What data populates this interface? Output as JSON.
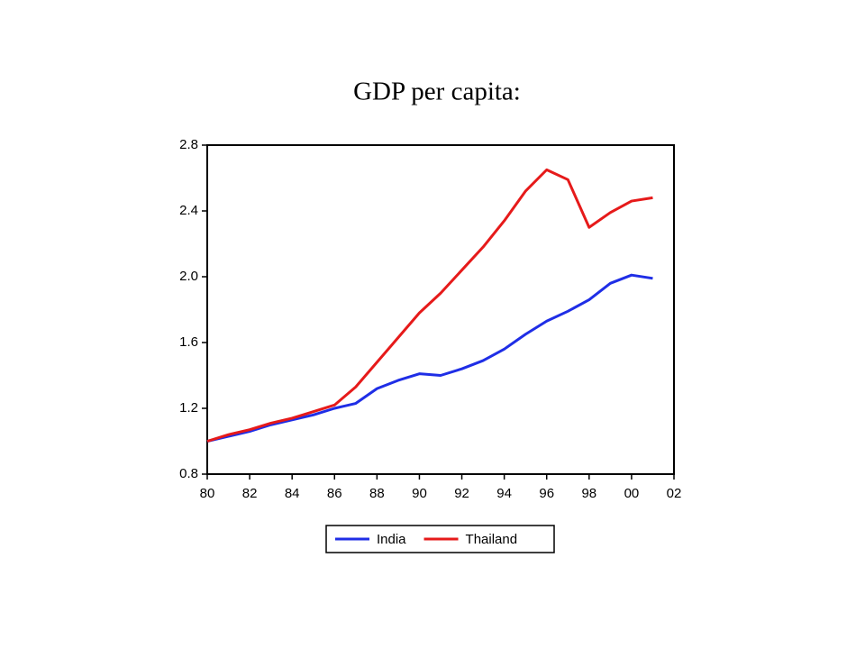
{
  "chart_data": {
    "type": "line",
    "title": "GDP per capita:",
    "x": [
      1980,
      1981,
      1982,
      1983,
      1984,
      1985,
      1986,
      1987,
      1988,
      1989,
      1990,
      1991,
      1992,
      1993,
      1994,
      1995,
      1996,
      1997,
      1998,
      1999,
      2000,
      2001
    ],
    "series": [
      {
        "name": "India",
        "color": "#1f2ee6",
        "values": [
          1.0,
          1.03,
          1.06,
          1.1,
          1.13,
          1.16,
          1.2,
          1.23,
          1.32,
          1.37,
          1.41,
          1.4,
          1.44,
          1.49,
          1.56,
          1.65,
          1.73,
          1.79,
          1.86,
          1.96,
          2.01,
          1.99
        ]
      },
      {
        "name": "Thailand",
        "color": "#e61a1a",
        "values": [
          1.0,
          1.04,
          1.07,
          1.11,
          1.14,
          1.18,
          1.22,
          1.33,
          1.48,
          1.63,
          1.78,
          1.9,
          2.04,
          2.18,
          2.34,
          2.52,
          2.65,
          2.59,
          2.3,
          2.39,
          2.46,
          2.48
        ]
      }
    ],
    "xlim": [
      1980,
      2002
    ],
    "xticks": [
      {
        "value": 1980,
        "label": "80"
      },
      {
        "value": 1982,
        "label": "82"
      },
      {
        "value": 1984,
        "label": "84"
      },
      {
        "value": 1986,
        "label": "86"
      },
      {
        "value": 1988,
        "label": "88"
      },
      {
        "value": 1990,
        "label": "90"
      },
      {
        "value": 1992,
        "label": "92"
      },
      {
        "value": 1994,
        "label": "94"
      },
      {
        "value": 1996,
        "label": "96"
      },
      {
        "value": 1998,
        "label": "98"
      },
      {
        "value": 2000,
        "label": "00"
      },
      {
        "value": 2002,
        "label": "02"
      }
    ],
    "ylim": [
      0.8,
      2.8
    ],
    "yticks": [
      0.8,
      1.2,
      1.6,
      {
        "value": 2,
        "label": "2.0"
      },
      2.4,
      2.8
    ],
    "legend": "bottom"
  }
}
